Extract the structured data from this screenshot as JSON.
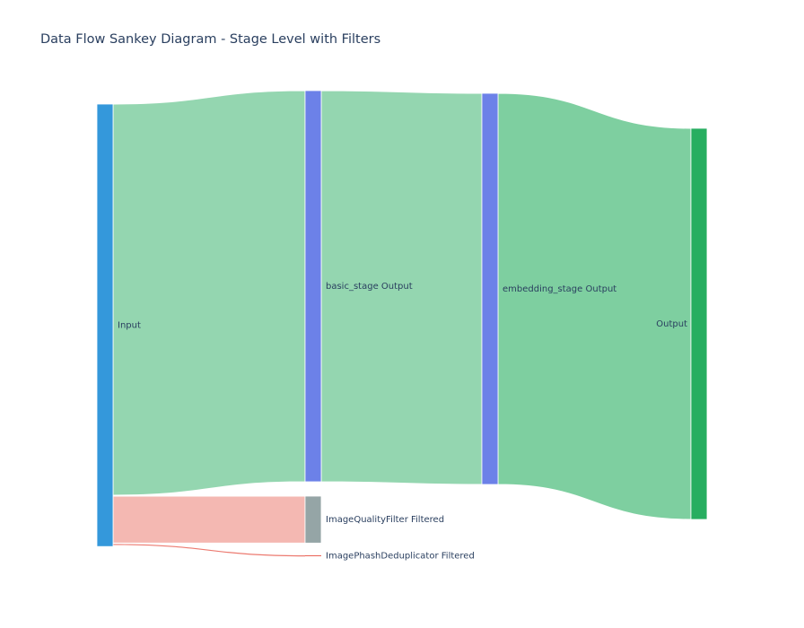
{
  "title": "Data Flow Sankey Diagram - Stage Level with Filters",
  "chart_data": {
    "type": "sankey",
    "title": "Data Flow Sankey Diagram - Stage Level with Filters",
    "nodes": [
      {
        "id": "input",
        "label": "Input",
        "color": "#3498db"
      },
      {
        "id": "basic",
        "label": "basic_stage Output",
        "color": "#6c81e8"
      },
      {
        "id": "iqf",
        "label": "ImageQualityFilter Filtered",
        "color": "#95a5a6"
      },
      {
        "id": "ipd",
        "label": "ImagePhashDeduplicator Filtered",
        "color": "#e74c3c"
      },
      {
        "id": "embedding",
        "label": "embedding_stage Output",
        "color": "#6c81e8"
      },
      {
        "id": "output",
        "label": "Output",
        "color": "#27ae60"
      }
    ],
    "links": [
      {
        "source": "input",
        "target": "basic",
        "value": 1000,
        "color": "#94d6b0"
      },
      {
        "source": "input",
        "target": "iqf",
        "value": 120,
        "color": "#f4b8b2"
      },
      {
        "source": "input",
        "target": "ipd",
        "value": 2,
        "color": "#ec7a70"
      },
      {
        "source": "basic",
        "target": "embedding",
        "value": 1000,
        "color": "#94d6b0"
      },
      {
        "source": "embedding",
        "target": "output",
        "value": 1000,
        "color": "#7ecfa0"
      }
    ]
  }
}
